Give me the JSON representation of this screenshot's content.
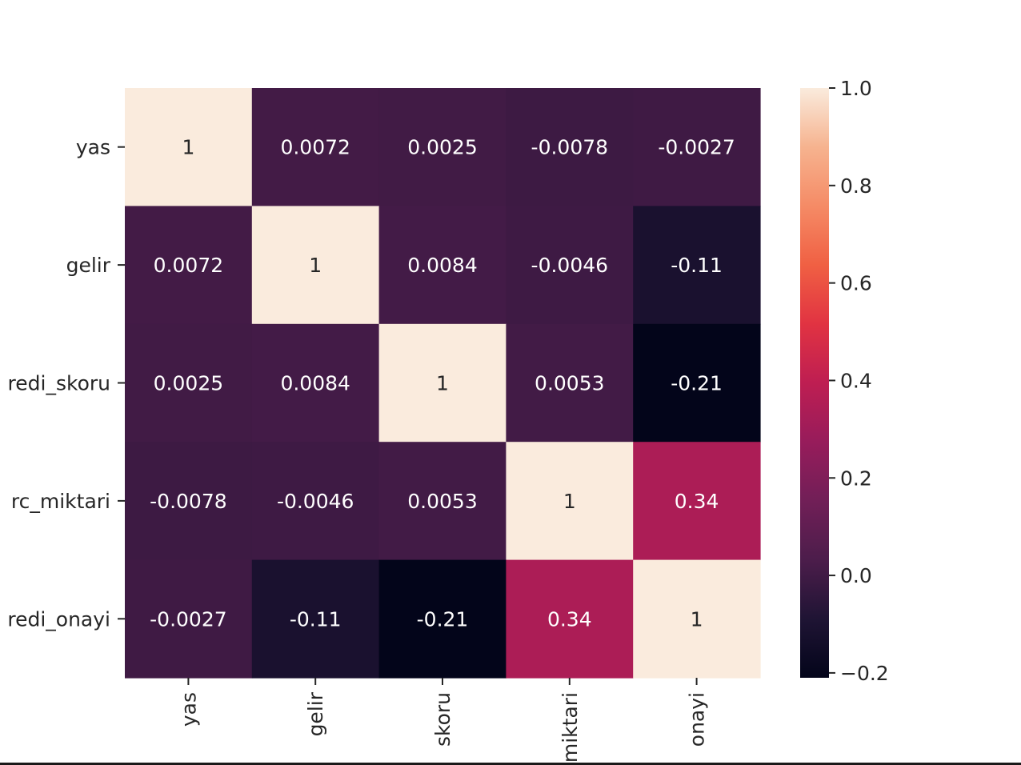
{
  "chart_data": {
    "type": "heatmap",
    "title": "",
    "xlabel": "",
    "ylabel": "",
    "row_labels": [
      "yas",
      "gelir",
      "redi_skoru",
      "rc_miktari",
      "redi_onayi"
    ],
    "col_labels": [
      "yas",
      "gelir",
      "skoru",
      "miktari",
      "onayi"
    ],
    "values": [
      [
        1,
        0.0072,
        0.0025,
        -0.0078,
        -0.0027
      ],
      [
        0.0072,
        1,
        0.0084,
        -0.0046,
        -0.11
      ],
      [
        0.0025,
        0.0084,
        1,
        0.0053,
        -0.21
      ],
      [
        -0.0078,
        -0.0046,
        0.0053,
        1,
        0.34
      ],
      [
        -0.0027,
        -0.11,
        -0.21,
        0.34,
        1
      ]
    ],
    "value_labels": [
      [
        "1",
        "0.0072",
        "0.0025",
        "-0.0078",
        "-0.0027"
      ],
      [
        "0.0072",
        "1",
        "0.0084",
        "-0.0046",
        "-0.11"
      ],
      [
        "0.0025",
        "0.0084",
        "1",
        "0.0053",
        "-0.21"
      ],
      [
        "-0.0078",
        "-0.0046",
        "0.0053",
        "1",
        "0.34"
      ],
      [
        "-0.0027",
        "-0.11",
        "-0.21",
        "0.34",
        "1"
      ]
    ],
    "colorbar": {
      "colormap": "rocket",
      "vmin": -0.21,
      "vmax": 1.0,
      "ticks": [
        1.0,
        0.8,
        0.6,
        0.4,
        0.2,
        0.0,
        -0.2
      ],
      "tick_labels": [
        "1.0",
        "0.8",
        "0.6",
        "0.4",
        "0.2",
        "0.0",
        "−0.2"
      ]
    },
    "colors": {
      "annotation_dark_cell_text": "#ffffff",
      "annotation_light_cell_text": "#262626",
      "axis_text": "#262626"
    },
    "grid": false,
    "legend": "colorbar-right"
  }
}
